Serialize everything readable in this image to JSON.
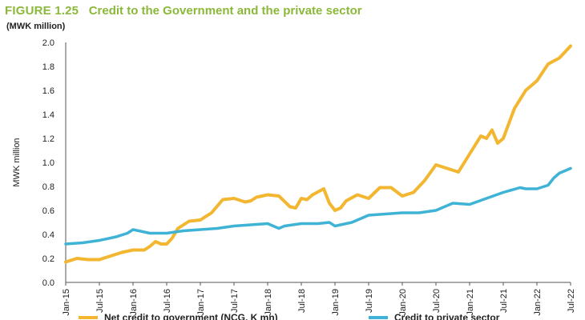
{
  "figure_label": "FIGURE 1.25",
  "figure_title": "Credit to the Government and the private sector",
  "unit_note": "(MWK million)",
  "colors": {
    "label": "#8bb83a",
    "title": "#8bb83a",
    "government": "#f2b630",
    "private": "#3fb3d6",
    "axis": "#555555"
  },
  "chart_data": {
    "type": "line",
    "title": "Credit to the Government and the private sector",
    "xlabel": "",
    "ylabel": "MWK million",
    "ylim": [
      0.0,
      2.0
    ],
    "yticks": [
      0.0,
      0.2,
      0.4,
      0.6,
      0.8,
      1.0,
      1.2,
      1.4,
      1.6,
      1.8,
      2.0
    ],
    "ytick_labels": [
      "0.0",
      "0.2",
      "0.4",
      "0.6",
      "0.8",
      "1.0",
      "1.2",
      "1.4",
      "1.6",
      "1.8",
      "2.0"
    ],
    "x_range": [
      0,
      90
    ],
    "x_tick_positions": [
      0,
      6,
      12,
      18,
      24,
      30,
      36,
      42,
      48,
      54,
      60,
      66,
      72,
      78,
      84,
      90
    ],
    "x_tick_labels": [
      "Jan-15",
      "Jul-15",
      "Jan-16",
      "Jul-16",
      "Jan-17",
      "Jul-17",
      "Jan-18",
      "Jul-18",
      "Jan-19",
      "Jul-19",
      "Jan-20",
      "Jul-20",
      "Jan-21",
      "Jul-21",
      "Jan-22",
      "Jul-22"
    ],
    "legend_position": "bottom",
    "series": [
      {
        "name": "Net credit to government (NCG, K mn)",
        "x": [
          0,
          2,
          4,
          6,
          8,
          10,
          12,
          14,
          15,
          16,
          17,
          18,
          19,
          20,
          22,
          24,
          26,
          28,
          30,
          32,
          33,
          34,
          36,
          38,
          40,
          41,
          42,
          43,
          44,
          46,
          47,
          48,
          49,
          50,
          52,
          54,
          56,
          58,
          60,
          62,
          64,
          66,
          68,
          70,
          72,
          74,
          75,
          76,
          77,
          78,
          80,
          82,
          84,
          86,
          88,
          90
        ],
        "values": [
          0.17,
          0.2,
          0.19,
          0.19,
          0.22,
          0.25,
          0.27,
          0.27,
          0.3,
          0.34,
          0.32,
          0.32,
          0.37,
          0.45,
          0.51,
          0.52,
          0.58,
          0.69,
          0.7,
          0.67,
          0.68,
          0.71,
          0.73,
          0.72,
          0.63,
          0.62,
          0.7,
          0.69,
          0.73,
          0.78,
          0.66,
          0.6,
          0.62,
          0.68,
          0.73,
          0.7,
          0.79,
          0.79,
          0.72,
          0.75,
          0.85,
          0.98,
          0.95,
          0.92,
          1.07,
          1.22,
          1.2,
          1.27,
          1.16,
          1.2,
          1.45,
          1.6,
          1.68,
          1.82,
          1.87,
          1.97
        ]
      },
      {
        "name": "Credit to private sector",
        "x": [
          0,
          3,
          6,
          9,
          11,
          12,
          13,
          15,
          18,
          21,
          24,
          27,
          30,
          33,
          36,
          38,
          39,
          42,
          45,
          47,
          48,
          51,
          54,
          57,
          60,
          63,
          66,
          69,
          72,
          75,
          78,
          81,
          82,
          84,
          86,
          87,
          88,
          90
        ],
        "values": [
          0.32,
          0.33,
          0.35,
          0.38,
          0.41,
          0.44,
          0.43,
          0.41,
          0.41,
          0.43,
          0.44,
          0.45,
          0.47,
          0.48,
          0.49,
          0.45,
          0.47,
          0.49,
          0.49,
          0.5,
          0.47,
          0.5,
          0.56,
          0.57,
          0.58,
          0.58,
          0.6,
          0.66,
          0.65,
          0.7,
          0.75,
          0.79,
          0.78,
          0.78,
          0.81,
          0.87,
          0.91,
          0.95
        ]
      }
    ]
  }
}
